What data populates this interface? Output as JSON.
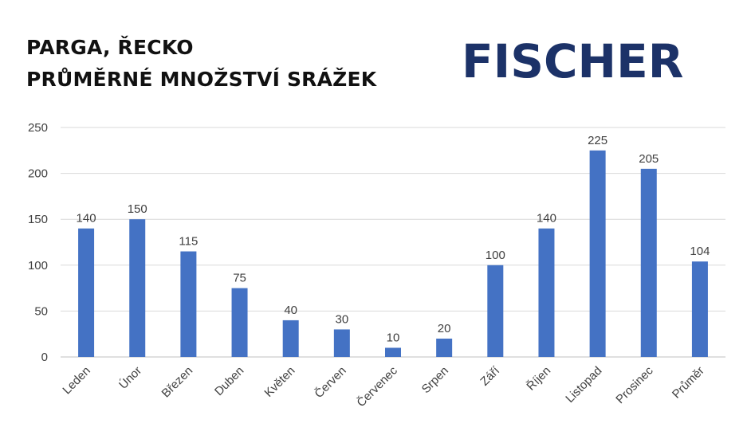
{
  "header": {
    "title_line1": "PARGA, ŘECKO",
    "title_line2": "PRŮMĚRNÉ MNOŽSTVÍ SRÁŽEK"
  },
  "logo": {
    "text": "FISCHER",
    "color": "#1c3268"
  },
  "chart_data": {
    "type": "bar",
    "categories": [
      "Leden",
      "Únor",
      "Březen",
      "Duben",
      "Květen",
      "Červen",
      "Červenec",
      "Srpen",
      "Září",
      "Říjen",
      "Listopad",
      "Prosinec",
      "Průměr"
    ],
    "values": [
      140,
      150,
      115,
      75,
      40,
      30,
      10,
      20,
      100,
      140,
      225,
      205,
      104
    ],
    "ylim": [
      0,
      250
    ],
    "yticks": [
      0,
      50,
      100,
      150,
      200,
      250
    ],
    "grid": true,
    "data_labels": true,
    "bar_color": "#4472c4",
    "title": "",
    "xlabel": "",
    "ylabel": ""
  }
}
